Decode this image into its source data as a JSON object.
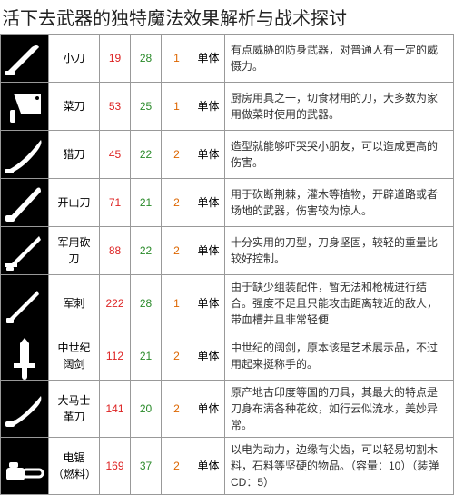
{
  "title": "活下去武器的独特魔法效果解析与战术探讨",
  "columns": {
    "target_label": "单体"
  },
  "colors": {
    "stat1": "#d22",
    "stat2": "#2a8a2a",
    "stat3": "#d60",
    "icon_bg": "#000000",
    "icon_fg": "#ffffff",
    "border": "#999999"
  },
  "weapons": [
    {
      "name": "小刀",
      "s1": "19",
      "s2": "28",
      "s3": "1",
      "desc": "有点威胁的防身武器，对普通人有一定的威慑力。",
      "icon": "knife-small"
    },
    {
      "name": "菜刀",
      "s1": "53",
      "s2": "25",
      "s3": "1",
      "desc": "厨房用具之一，切食材用的刀，大多数为家用做菜时使用的武器。",
      "icon": "cleaver"
    },
    {
      "name": "猎刀",
      "s1": "45",
      "s2": "22",
      "s3": "2",
      "desc": "造型就能够吓哭哭小朋友，可以造成更高的伤害。",
      "icon": "hunting-knife"
    },
    {
      "name": "开山刀",
      "s1": "71",
      "s2": "21",
      "s3": "2",
      "desc": "用于砍断荆棘，灌木等植物，开辟道路或者场地的武器，伤害较为惊人。",
      "icon": "machete"
    },
    {
      "name": "军用砍刀",
      "s1": "88",
      "s2": "22",
      "s3": "2",
      "desc": "十分实用的刀型，刀身坚固，较轻的重量比较好控制。",
      "icon": "military-knife"
    },
    {
      "name": "军刺",
      "s1": "222",
      "s2": "28",
      "s3": "1",
      "desc": "由于缺少组装配件，暂无法和枪械进行结合。强度不足且只能攻击距离较近的敌人，带血槽并且非常轻便",
      "icon": "bayonet"
    },
    {
      "name": "中世纪阔剑",
      "s1": "112",
      "s2": "21",
      "s3": "2",
      "desc": "中世纪的阔剑，原本该是艺术展示品，不过用起来挺称手的。",
      "icon": "broadsword"
    },
    {
      "name": "大马士革刀",
      "s1": "141",
      "s2": "20",
      "s3": "2",
      "desc": "原产地古印度等国的刀具，其最大的特点是刀身布满各种花纹，如行云似流水，美妙异常。",
      "icon": "damascus"
    },
    {
      "name": "电锯（燃料）",
      "s1": "169",
      "s2": "37",
      "s3": "2",
      "desc": "以电为动力，边缘有尖齿，可以轻易切割木料，石料等坚硬的物品。（容量：10）（装弹 CD：5）",
      "icon": "chainsaw"
    }
  ]
}
